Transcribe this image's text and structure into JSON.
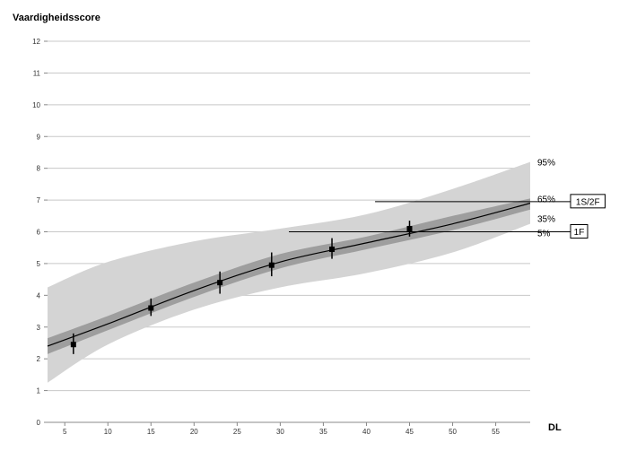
{
  "chart_data": {
    "type": "line",
    "title": "",
    "ylabel": "Vaardigheidsscore",
    "xlabel": "DL",
    "xlim": [
      3,
      59
    ],
    "ylim": [
      0,
      12
    ],
    "x_ticks": [
      5,
      10,
      15,
      20,
      25,
      30,
      35,
      40,
      45,
      50,
      55
    ],
    "y_ticks": [
      0,
      1,
      2,
      3,
      4,
      5,
      6,
      7,
      8,
      9,
      10,
      11,
      12
    ],
    "grid": "horizontal",
    "bands": [
      {
        "lower_label": "5%",
        "upper_label": "95%",
        "color": "#d4d4d4",
        "x": [
          3,
          10,
          20,
          30,
          40,
          50,
          59
        ],
        "lower": [
          1.25,
          2.45,
          3.55,
          4.25,
          4.7,
          5.35,
          6.25
        ],
        "upper": [
          4.25,
          5.05,
          5.7,
          6.1,
          6.55,
          7.35,
          8.2
        ]
      },
      {
        "lower_label": "35%",
        "upper_label": "65%",
        "color": "#9e9e9e",
        "x": [
          3,
          10,
          20,
          30,
          40,
          50,
          59
        ],
        "lower": [
          2.15,
          2.9,
          3.95,
          4.85,
          5.45,
          6.05,
          6.7
        ],
        "upper": [
          2.65,
          3.35,
          4.4,
          5.3,
          5.85,
          6.5,
          7.05
        ]
      }
    ],
    "series": [
      {
        "type": "line",
        "color": "#000000",
        "x": [
          3,
          10,
          20,
          30,
          40,
          50,
          59
        ],
        "y": [
          2.4,
          3.1,
          4.15,
          5.05,
          5.65,
          6.25,
          6.9
        ]
      },
      {
        "type": "points_with_errorbars",
        "color": "#000000",
        "points": [
          {
            "x": 6,
            "y": 2.45,
            "low": 2.15,
            "high": 2.8
          },
          {
            "x": 15,
            "y": 3.6,
            "low": 3.35,
            "high": 3.9
          },
          {
            "x": 23,
            "y": 4.4,
            "low": 4.05,
            "high": 4.75
          },
          {
            "x": 29,
            "y": 4.95,
            "low": 4.6,
            "high": 5.35
          },
          {
            "x": 36,
            "y": 5.45,
            "low": 5.15,
            "high": 5.8
          },
          {
            "x": 45,
            "y": 6.1,
            "low": 5.85,
            "high": 6.35
          }
        ]
      }
    ],
    "reference_lines": [
      {
        "label": "1S/2F",
        "y": 6.95,
        "x_start": 41
      },
      {
        "label": "1F",
        "y": 6.0,
        "x_start": 31
      }
    ]
  }
}
